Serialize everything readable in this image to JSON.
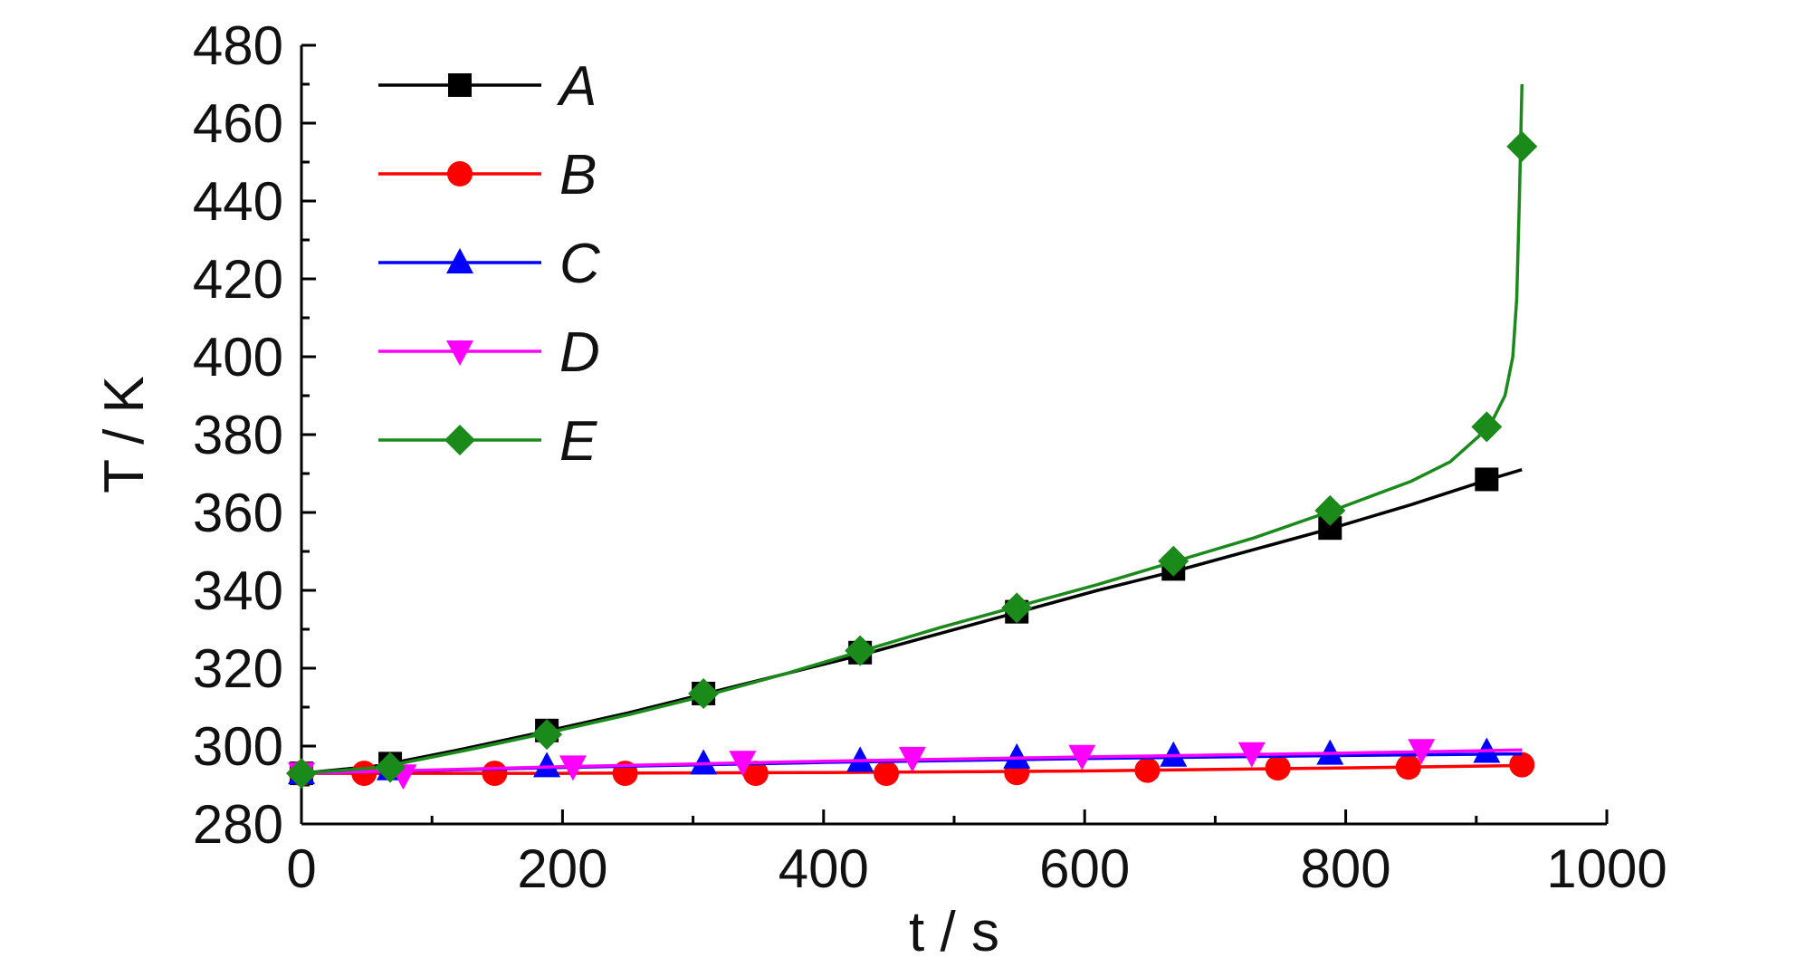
{
  "chart_data": {
    "type": "line",
    "xlabel": "t / s",
    "ylabel": "T / K",
    "xlim": [
      0,
      1000
    ],
    "ylim": [
      280,
      480
    ],
    "x_ticks": [
      "0",
      "200",
      "400",
      "600",
      "800",
      "1000"
    ],
    "y_ticks": [
      "280",
      "300",
      "320",
      "340",
      "360",
      "380",
      "400",
      "420",
      "440",
      "460",
      "480"
    ],
    "legend": {
      "placement": "top-left"
    },
    "grid": false,
    "series": [
      {
        "name": "A",
        "color": "#000000",
        "marker": "square",
        "curve": [
          [
            0,
            293
          ],
          [
            60,
            295
          ],
          [
            120,
            299
          ],
          [
            190,
            304
          ],
          [
            250,
            308.5
          ],
          [
            310,
            313.5
          ],
          [
            370,
            318.5
          ],
          [
            430,
            323.5
          ],
          [
            490,
            329
          ],
          [
            550,
            334.5
          ],
          [
            610,
            340
          ],
          [
            670,
            345
          ],
          [
            730,
            350.5
          ],
          [
            790,
            356
          ],
          [
            850,
            362
          ],
          [
            910,
            368.5
          ],
          [
            935,
            371
          ]
        ],
        "points": [
          [
            0,
            293
          ],
          [
            68,
            295.5
          ],
          [
            188,
            304
          ],
          [
            308,
            313.5
          ],
          [
            428,
            324
          ],
          [
            548,
            334.5
          ],
          [
            668,
            345.5
          ],
          [
            788,
            356
          ],
          [
            908,
            368.5
          ]
        ]
      },
      {
        "name": "B",
        "color": "#ff0000",
        "marker": "circle",
        "curve": [
          [
            0,
            293
          ],
          [
            200,
            293
          ],
          [
            400,
            293.2
          ],
          [
            600,
            293.6
          ],
          [
            800,
            294.4
          ],
          [
            935,
            295
          ]
        ],
        "points": [
          [
            0,
            293
          ],
          [
            48,
            293
          ],
          [
            148,
            293
          ],
          [
            248,
            293
          ],
          [
            348,
            293
          ],
          [
            448,
            293
          ],
          [
            548,
            293.2
          ],
          [
            648,
            293.8
          ],
          [
            748,
            294.4
          ],
          [
            848,
            294.6
          ],
          [
            935,
            295.2
          ]
        ]
      },
      {
        "name": "C",
        "color": "#0000ff",
        "marker": "triangle-up",
        "curve": [
          [
            0,
            293
          ],
          [
            200,
            294.5
          ],
          [
            400,
            295.8
          ],
          [
            600,
            296.8
          ],
          [
            800,
            297.6
          ],
          [
            935,
            298
          ]
        ],
        "points": [
          [
            0,
            293
          ],
          [
            68,
            294
          ],
          [
            188,
            294.8
          ],
          [
            308,
            295.5
          ],
          [
            428,
            296.2
          ],
          [
            548,
            297
          ],
          [
            668,
            297.5
          ],
          [
            788,
            298
          ],
          [
            908,
            298.5
          ]
        ]
      },
      {
        "name": "D",
        "color": "#ff00ff",
        "marker": "triangle-down",
        "curve": [
          [
            0,
            293
          ],
          [
            200,
            294.7
          ],
          [
            400,
            296.1
          ],
          [
            600,
            297.2
          ],
          [
            800,
            298.2
          ],
          [
            935,
            299
          ]
        ],
        "points": [
          [
            0,
            293
          ],
          [
            78,
            292.5
          ],
          [
            208,
            294.8
          ],
          [
            338,
            296
          ],
          [
            468,
            297
          ],
          [
            598,
            297.5
          ],
          [
            728,
            298.2
          ],
          [
            858,
            299
          ]
        ]
      },
      {
        "name": "E",
        "color": "#1a8a1a",
        "marker": "diamond",
        "curve": [
          [
            0,
            293
          ],
          [
            60,
            294.5
          ],
          [
            120,
            298.5
          ],
          [
            190,
            303.5
          ],
          [
            250,
            308
          ],
          [
            310,
            313
          ],
          [
            370,
            318.5
          ],
          [
            430,
            324.5
          ],
          [
            490,
            330.5
          ],
          [
            550,
            336
          ],
          [
            610,
            341.5
          ],
          [
            670,
            347.5
          ],
          [
            730,
            353.5
          ],
          [
            790,
            360.5
          ],
          [
            850,
            368
          ],
          [
            880,
            373
          ],
          [
            910,
            382
          ],
          [
            922,
            390
          ],
          [
            928,
            400
          ],
          [
            931,
            415
          ],
          [
            933,
            440
          ],
          [
            934,
            455
          ],
          [
            935,
            470
          ]
        ],
        "points": [
          [
            0,
            293
          ],
          [
            68,
            294.5
          ],
          [
            188,
            303
          ],
          [
            308,
            313.5
          ],
          [
            428,
            324.5
          ],
          [
            548,
            335.5
          ],
          [
            668,
            347.5
          ],
          [
            788,
            360.5
          ],
          [
            908,
            382
          ],
          [
            935,
            454
          ]
        ]
      }
    ]
  }
}
